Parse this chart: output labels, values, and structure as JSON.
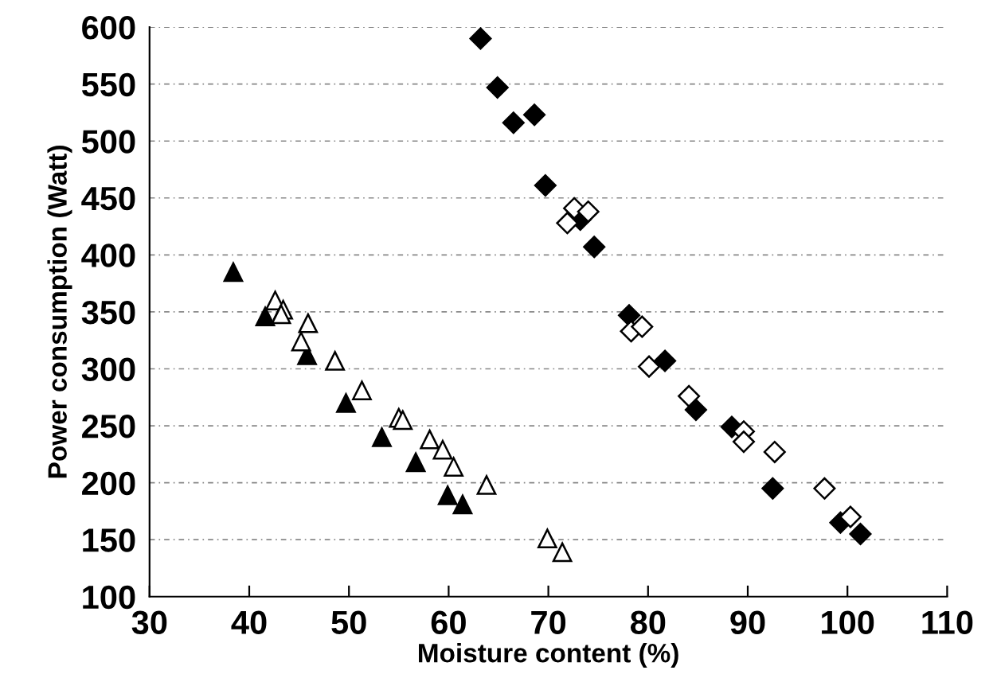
{
  "chart_data": {
    "type": "scatter",
    "xlabel": "Moisture content (%)",
    "ylabel": "Power consumption (Watt)",
    "xlim": [
      30,
      110
    ],
    "xticks": [
      30,
      40,
      50,
      60,
      70,
      80,
      90,
      100,
      110
    ],
    "ylim": [
      100,
      600
    ],
    "yticks": [
      100,
      150,
      200,
      250,
      300,
      350,
      400,
      450,
      500,
      550,
      600
    ],
    "grid": "y",
    "series": [
      {
        "color": "#000000",
        "marker": "diamond",
        "x": [
          63.2,
          64.9,
          66.5,
          68.6,
          69.7,
          73.2,
          74.6,
          78.1,
          81.7,
          84.8,
          88.4,
          92.5,
          99.3,
          101.3
        ],
        "values": [
          590,
          547,
          516,
          523,
          461,
          431,
          407,
          347,
          307,
          264,
          249,
          195,
          165,
          155
        ]
      },
      {
        "color": "#ffffff",
        "marker": "diamond",
        "x": [
          71.9,
          72.6,
          74.0,
          78.3,
          79.4,
          80.1,
          84.1,
          89.6,
          89.6,
          92.7,
          97.7,
          100.3
        ],
        "values": [
          428,
          441,
          438,
          333,
          337,
          302,
          276,
          245,
          236,
          227,
          195,
          170
        ]
      },
      {
        "color": "#000000",
        "marker": "triangle",
        "x": [
          38.4,
          41.6,
          45.8,
          49.7,
          53.3,
          56.7,
          59.9,
          61.4
        ],
        "values": [
          385,
          346,
          312,
          270,
          240,
          218,
          189,
          181
        ]
      },
      {
        "color": "#ffffff",
        "marker": "triangle",
        "x": [
          42.6,
          43.4,
          43.2,
          45.9,
          45.2,
          48.6,
          51.3,
          55.0,
          55.4,
          58.1,
          59.4,
          60.5,
          63.8,
          69.9,
          71.4
        ],
        "values": [
          360,
          352,
          348,
          340,
          324,
          307,
          281,
          257,
          255,
          238,
          229,
          214,
          198,
          151,
          139
        ]
      }
    ]
  }
}
